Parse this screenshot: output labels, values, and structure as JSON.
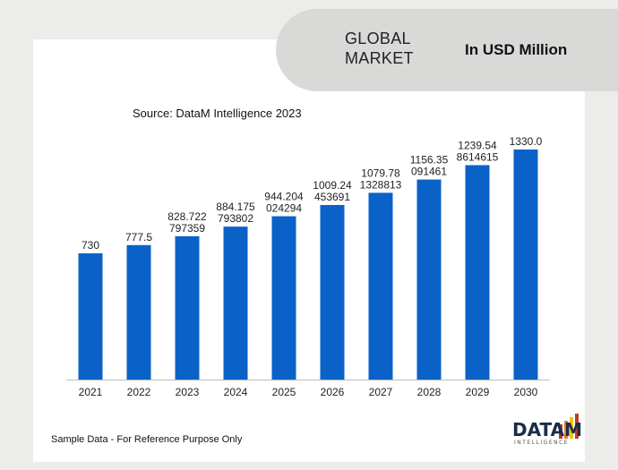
{
  "header": {
    "title": "GLOBAL MARKET",
    "unit": "In USD Million"
  },
  "source": "Source: DataM Intelligence 2023",
  "footer_note": "Sample Data - For Reference Purpose Only",
  "logo": {
    "word": "DATAM",
    "sub": "INTELLIGENCE"
  },
  "colors": {
    "bar": "#0a62c9",
    "background": "#ececea",
    "pill": "#d9d9d8"
  },
  "chart_data": {
    "type": "bar",
    "categories": [
      "2021",
      "2022",
      "2023",
      "2024",
      "2025",
      "2026",
      "2027",
      "2028",
      "2029",
      "2030"
    ],
    "values": [
      730,
      777.5,
      828.722797359,
      884.175793802,
      944.204024294,
      1009.24453691,
      1079.781328813,
      1156.35091461,
      1239.548614615,
      1330.0
    ],
    "labels": [
      [
        "730"
      ],
      [
        "777.5"
      ],
      [
        "828.722",
        "797359"
      ],
      [
        "884.175",
        "793802"
      ],
      [
        "944.204",
        "024294"
      ],
      [
        "1009.24",
        "453691"
      ],
      [
        "1079.78",
        "1328813"
      ],
      [
        "1156.35",
        "091461"
      ],
      [
        "1239.54",
        "8614615"
      ],
      [
        "1330.0"
      ]
    ],
    "title": "",
    "xlabel": "",
    "ylabel": "",
    "ylim": [
      0,
      1330
    ],
    "grid": false,
    "legend": "none"
  }
}
